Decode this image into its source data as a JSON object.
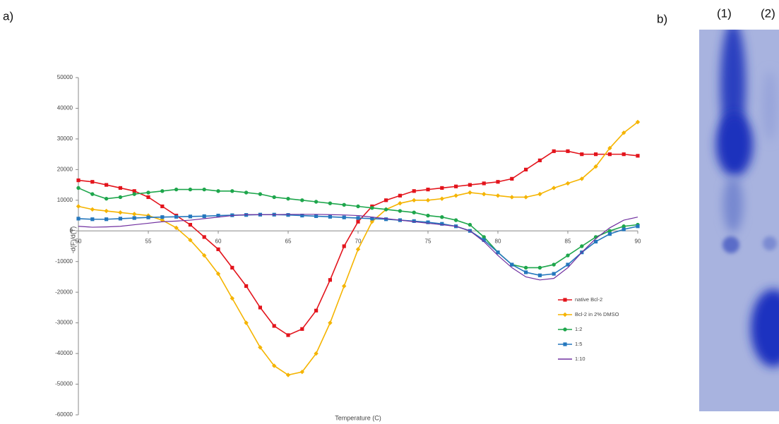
{
  "panel_labels": {
    "a": "a)",
    "b": "b)"
  },
  "gel_lanes": [
    "(1)",
    "(2)"
  ],
  "chart_data": {
    "type": "line",
    "x_label": "Temperature (C)",
    "y_label": "-d(F)/d(T)",
    "x": [
      50,
      51,
      52,
      53,
      54,
      55,
      56,
      57,
      58,
      59,
      60,
      61,
      62,
      63,
      64,
      65,
      66,
      67,
      68,
      69,
      70,
      71,
      72,
      73,
      74,
      75,
      76,
      77,
      78,
      79,
      80,
      81,
      82,
      83,
      84,
      85,
      86,
      87,
      88,
      89,
      90
    ],
    "series": [
      {
        "name": "native Bcl-2",
        "color": "#e3141c",
        "marker": "square",
        "values": [
          16500,
          16000,
          15000,
          14000,
          13000,
          11000,
          8000,
          5000,
          2000,
          -2000,
          -6000,
          -12000,
          -18000,
          -25000,
          -31000,
          -34000,
          -32000,
          -26000,
          -16000,
          -5000,
          3000,
          8000,
          10000,
          11500,
          13000,
          13500,
          14000,
          14500,
          15000,
          15500,
          16000,
          17000,
          20000,
          23000,
          26000,
          26000,
          25000,
          25000,
          25000,
          25000,
          24500
        ]
      },
      {
        "name": "Bcl-2 in 2% DMSO",
        "color": "#f5b400",
        "marker": "diamond",
        "values": [
          8000,
          7000,
          6500,
          6000,
          5500,
          5000,
          3500,
          1000,
          -3000,
          -8000,
          -14000,
          -22000,
          -30000,
          -38000,
          -44000,
          -47000,
          -46000,
          -40000,
          -30000,
          -18000,
          -6000,
          3000,
          7000,
          9000,
          10000,
          10000,
          10500,
          11500,
          12500,
          12000,
          11500,
          11000,
          11000,
          12000,
          14000,
          15500,
          17000,
          21000,
          27000,
          32000,
          35500
        ]
      },
      {
        "name": "1:2",
        "color": "#1ea64c",
        "marker": "circle",
        "values": [
          14000,
          12000,
          10500,
          11000,
          12000,
          12500,
          13000,
          13500,
          13500,
          13500,
          13000,
          13000,
          12500,
          12000,
          11000,
          10500,
          10000,
          9500,
          9000,
          8500,
          8000,
          7500,
          7000,
          6500,
          6000,
          5000,
          4500,
          3500,
          2000,
          -2000,
          -7000,
          -11000,
          -12000,
          -12000,
          -11000,
          -8000,
          -5000,
          -2000,
          0,
          1500,
          2000
        ]
      },
      {
        "name": "1:5",
        "color": "#2477bd",
        "marker": "square",
        "values": [
          4000,
          3800,
          3800,
          4000,
          4200,
          4400,
          4500,
          4600,
          4700,
          4800,
          5000,
          5100,
          5200,
          5300,
          5300,
          5200,
          5000,
          4800,
          4600,
          4400,
          4200,
          4000,
          3800,
          3500,
          3200,
          2800,
          2300,
          1500,
          0,
          -3000,
          -7000,
          -11000,
          -13500,
          -14500,
          -14000,
          -11000,
          -7000,
          -3500,
          -1000,
          500,
          1500
        ]
      },
      {
        "name": "1:10",
        "color": "#7030a0",
        "marker": "none",
        "values": [
          1500,
          1200,
          1300,
          1500,
          2000,
          2500,
          3000,
          3200,
          3500,
          4000,
          4500,
          5000,
          5300,
          5300,
          5300,
          5400,
          5400,
          5400,
          5300,
          5200,
          5000,
          4500,
          4000,
          3500,
          3000,
          2500,
          2000,
          1500,
          0,
          -3500,
          -8000,
          -12000,
          -15000,
          -16000,
          -15500,
          -12000,
          -7000,
          -2500,
          1000,
          3500,
          4500
        ]
      }
    ],
    "xlim": [
      50,
      90
    ],
    "xticks": [
      50,
      55,
      60,
      65,
      70,
      75,
      80,
      85,
      90
    ],
    "ylim": [
      -60000,
      50000
    ],
    "yticks": [
      -60000,
      -50000,
      -40000,
      -30000,
      -20000,
      -10000,
      0,
      10000,
      20000,
      30000,
      40000,
      50000
    ],
    "grid": false,
    "legend": "lower right"
  }
}
